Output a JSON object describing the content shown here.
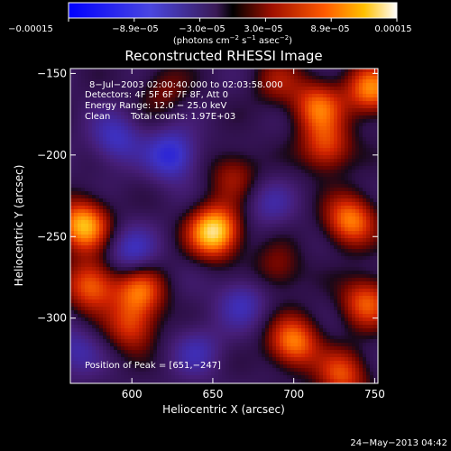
{
  "chart_data": {
    "type": "heatmap",
    "title": "Reconstructed RHESSI Image",
    "xlabel": "Heliocentric X (arcsec)",
    "ylabel": "Heliocentric Y (arcsec)",
    "xlim": [
      562,
      752
    ],
    "ylim": [
      -340,
      -147
    ],
    "x_ticks": [
      600,
      650,
      700,
      750
    ],
    "x_tick_labels": [
      "600",
      "650",
      "700",
      "750"
    ],
    "y_ticks": [
      -150,
      -200,
      -250,
      -300
    ],
    "y_tick_labels": [
      "−150",
      "−200",
      "−250",
      "−300"
    ],
    "colorbar": {
      "range": [
        -0.00015,
        0.00015
      ],
      "tick_values": [
        -0.00015,
        -8.9e-05,
        -3e-05,
        3e-05,
        8.9e-05,
        0.00015
      ],
      "tick_labels": [
        "−0.00015",
        "−8.9e−05",
        "−3.0e−05",
        "3.0e−05",
        "8.9e−05",
        "0.00015"
      ],
      "label_main": "(photons cm",
      "label_exp1": "−2",
      "label_mid": " s",
      "label_exp2": "−1",
      "label_mid2": " asec",
      "label_exp3": "−2",
      "label_end": ")"
    },
    "annotations": {
      "time": "8−Jul−2003 02:00:40.000 to 02:03:58.000",
      "detectors": "Detectors: 4F 5F 6F 7F 8F, Att 0",
      "energy": "Energy Range: 12.0 − 25.0 keV",
      "clean": "Clean",
      "counts": "Total counts: 1.97E+03",
      "peak": "Position of Peak = [651,−247]"
    },
    "sources": [
      {
        "x": 651,
        "y": -247,
        "value": 1.0
      },
      {
        "x": 570,
        "y": -243,
        "value": 0.85
      },
      {
        "x": 575,
        "y": -280,
        "value": 0.65
      },
      {
        "x": 605,
        "y": -283,
        "value": 0.6
      },
      {
        "x": 600,
        "y": -305,
        "value": 0.5
      },
      {
        "x": 700,
        "y": -315,
        "value": 0.7
      },
      {
        "x": 735,
        "y": -240,
        "value": 0.7
      },
      {
        "x": 745,
        "y": -290,
        "value": 0.6
      },
      {
        "x": 720,
        "y": -195,
        "value": 0.55
      },
      {
        "x": 715,
        "y": -170,
        "value": 0.6
      },
      {
        "x": 748,
        "y": -160,
        "value": 0.7
      },
      {
        "x": 663,
        "y": -212,
        "value": 0.35
      },
      {
        "x": 620,
        "y": -160,
        "value": 0.25
      },
      {
        "x": 690,
        "y": -155,
        "value": 0.3
      },
      {
        "x": 730,
        "y": -335,
        "value": 0.55
      },
      {
        "x": 690,
        "y": -270,
        "value": 0.3
      },
      {
        "x": 600,
        "y": -260,
        "value": -0.4
      },
      {
        "x": 625,
        "y": -200,
        "value": -0.55
      },
      {
        "x": 590,
        "y": -190,
        "value": -0.4
      },
      {
        "x": 668,
        "y": -290,
        "value": -0.35
      },
      {
        "x": 640,
        "y": -320,
        "value": -0.3
      },
      {
        "x": 685,
        "y": -230,
        "value": -0.25
      },
      {
        "x": 565,
        "y": -320,
        "value": -0.3
      }
    ]
  },
  "footer": {
    "date": "24−May−2013 04:42"
  }
}
